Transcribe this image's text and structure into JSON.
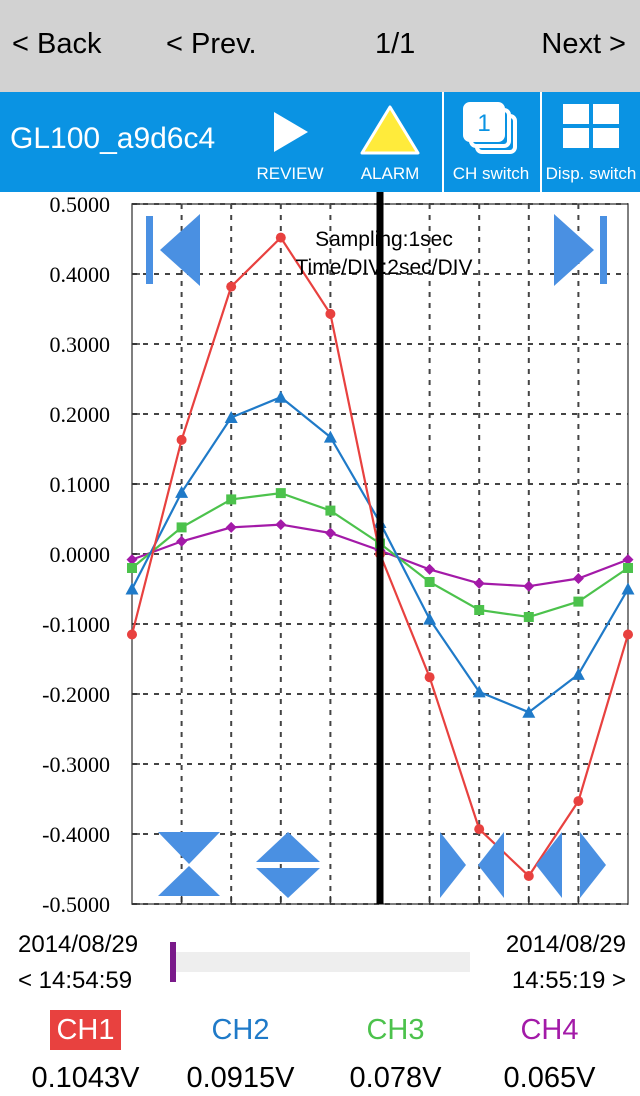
{
  "nav": {
    "back": "< Back",
    "prev": "< Prev.",
    "page": "1/1",
    "next": "Next >"
  },
  "toolbar": {
    "device_name": "GL100_a9d6c4",
    "review": "REVIEW",
    "alarm": "ALARM",
    "ch_switch": "CH switch",
    "disp_switch": "Disp. switch",
    "ch_switch_badge": "1"
  },
  "chart_info": {
    "sampling": "Sampling:1sec",
    "time_div": "Time/DIV:2sec/DIV"
  },
  "colors": {
    "accent": "#0a93e3",
    "nav_bg": "#d2d2d2",
    "ch1": "#e8413f",
    "ch2": "#1f7ac8",
    "ch3": "#4cc24c",
    "ch4": "#a31aa8",
    "control_blue": "#4a90e2",
    "alarm_yellow": "#ffeb3b"
  },
  "time": {
    "start_date": "2014/08/29",
    "start_time": "< 14:54:59",
    "end_date": "2014/08/29",
    "end_time": "14:55:19 >"
  },
  "slider": {
    "position": 0.0
  },
  "channels": [
    {
      "name": "CH1",
      "value": "0.1043V",
      "selected": true
    },
    {
      "name": "CH2",
      "value": "0.0915V"
    },
    {
      "name": "CH3",
      "value": "0.078V"
    },
    {
      "name": "CH4",
      "value": "0.065V"
    }
  ],
  "chart_data": {
    "type": "line",
    "ylim": [
      -0.5,
      0.5
    ],
    "y_tick_labels": [
      "0.5000",
      "0.4000",
      "0.3000",
      "0.2000",
      "0.1000",
      "0.0000",
      "-0.1000",
      "-0.2000",
      "-0.3000",
      "-0.4000",
      "-0.5000"
    ],
    "y_ticks": [
      0.5,
      0.4,
      0.3,
      0.2,
      0.1,
      0.0,
      -0.1,
      -0.2,
      -0.3,
      -0.4,
      -0.5
    ],
    "x_points": [
      0,
      1,
      2,
      3,
      4,
      5,
      6,
      7,
      8,
      9,
      10
    ],
    "grid": true,
    "cursor_x": 5,
    "series": [
      {
        "name": "CH1",
        "marker": "circle",
        "values": [
          -0.115,
          0.163,
          0.382,
          0.452,
          0.343,
          0.0,
          -0.176,
          -0.393,
          -0.46,
          -0.353,
          -0.115
        ]
      },
      {
        "name": "CH2",
        "marker": "triangle",
        "values": [
          -0.05,
          0.088,
          0.195,
          0.224,
          0.167,
          0.045,
          -0.093,
          -0.197,
          -0.226,
          -0.172,
          -0.05
        ]
      },
      {
        "name": "CH3",
        "marker": "square",
        "values": [
          -0.02,
          0.038,
          0.078,
          0.087,
          0.062,
          0.015,
          -0.04,
          -0.08,
          -0.09,
          -0.068,
          -0.02
        ]
      },
      {
        "name": "CH4",
        "marker": "diamond",
        "values": [
          -0.008,
          0.018,
          0.038,
          0.042,
          0.03,
          0.005,
          -0.022,
          -0.042,
          -0.046,
          -0.035,
          -0.008
        ]
      }
    ]
  }
}
